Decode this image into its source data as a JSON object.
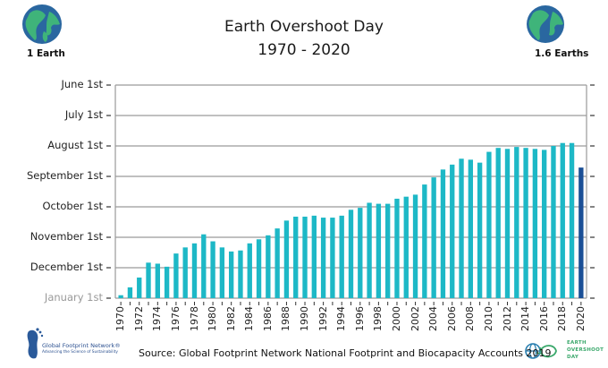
{
  "header": {
    "title_line1": "Earth Overshoot Day",
    "title_line2": "1970 - 2020",
    "left_label": "1 Earth",
    "right_label": "1.6 Earths"
  },
  "footer": {
    "source": "Source: Global Footprint Network National Footprint and Biocapacity Accounts 2019",
    "gfn_logo_name": "Global Footprint Network®",
    "gfn_logo_tagline": "Advancing the Science of Sustainability",
    "eod_logo_line1": "EARTH",
    "eod_logo_line2": "OVERSHOOT",
    "eod_logo_line3": "DAY"
  },
  "colors": {
    "bar": "#1db8c6",
    "bar_highlight": "#1a4f96",
    "grid": "#9a9a9a",
    "earth_ocean": "#2a67a0",
    "earth_land": "#3fb47a"
  },
  "chart_data": {
    "type": "bar",
    "title": "Earth Overshoot Day 1970 - 2020",
    "xlabel": "",
    "ylabel": "",
    "y_unit": "day of year (reversed axis: earlier date = taller bar)",
    "y_ticks": [
      {
        "label": "June 1st",
        "day": 152
      },
      {
        "label": "July 1st",
        "day": 182
      },
      {
        "label": "August 1st",
        "day": 213
      },
      {
        "label": "September 1st",
        "day": 244
      },
      {
        "label": "October 1st",
        "day": 274
      },
      {
        "label": "November 1st",
        "day": 305
      },
      {
        "label": "December 1st",
        "day": 335
      },
      {
        "label": "January 1st",
        "day": 366
      }
    ],
    "ylim": [
      366,
      152
    ],
    "grid": true,
    "x_tick_labels": [
      "1970",
      "1972",
      "1974",
      "1976",
      "1978",
      "1980",
      "1982",
      "1984",
      "1986",
      "1988",
      "1990",
      "1992",
      "1994",
      "1996",
      "1998",
      "2000",
      "2002",
      "2004",
      "2006",
      "2008",
      "2010",
      "2012",
      "2014",
      "2016",
      "2018",
      "2020"
    ],
    "categories": [
      1970,
      1971,
      1972,
      1973,
      1974,
      1975,
      1976,
      1977,
      1978,
      1979,
      1980,
      1981,
      1982,
      1983,
      1984,
      1985,
      1986,
      1987,
      1988,
      1989,
      1990,
      1991,
      1992,
      1993,
      1994,
      1995,
      1996,
      1997,
      1998,
      1999,
      2000,
      2001,
      2002,
      2003,
      2004,
      2005,
      2006,
      2007,
      2008,
      2009,
      2010,
      2011,
      2012,
      2013,
      2014,
      2015,
      2016,
      2017,
      2018,
      2019,
      2020
    ],
    "values": [
      363,
      355,
      345,
      330,
      331,
      334,
      321,
      315,
      311,
      302,
      309,
      315,
      319,
      318,
      311,
      307,
      303,
      296,
      288,
      284,
      284,
      283,
      285,
      285,
      283,
      277,
      275,
      270,
      271,
      271,
      266,
      264,
      262,
      252,
      245,
      237,
      232,
      226,
      227,
      230,
      219,
      215,
      216,
      214,
      215,
      216,
      217,
      213,
      210,
      210,
      235
    ],
    "highlight": [
      2020
    ]
  }
}
